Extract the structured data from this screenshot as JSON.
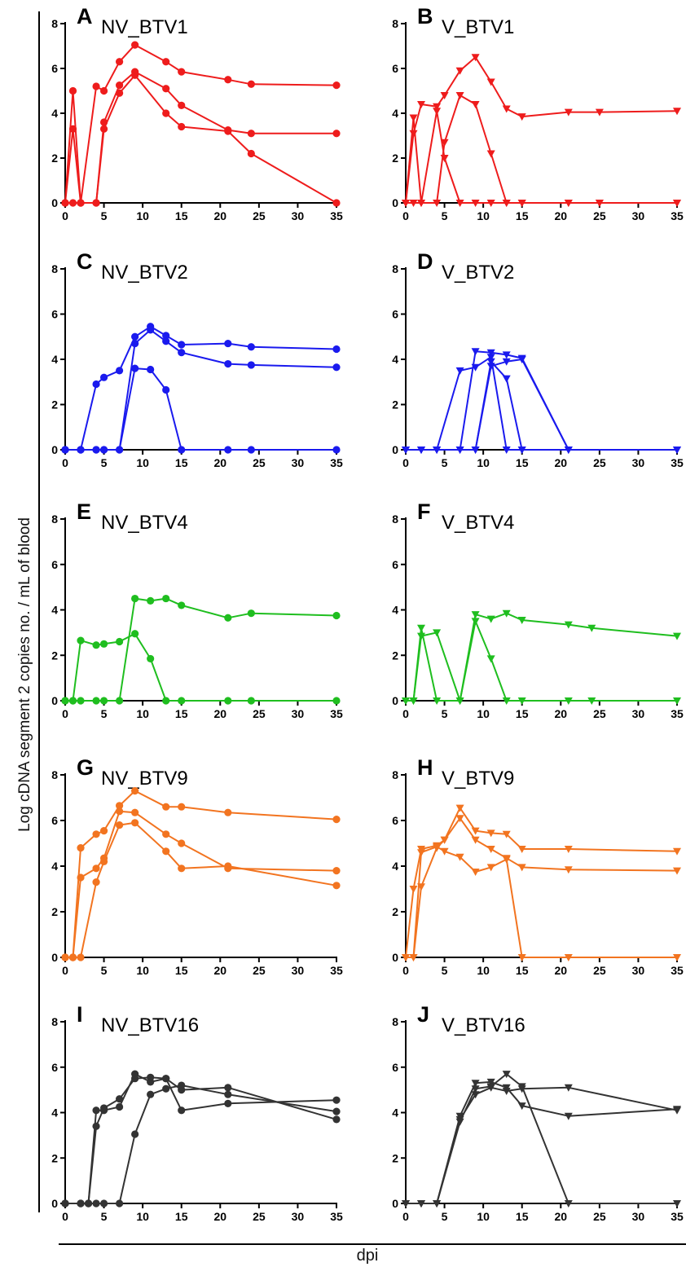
{
  "figure": {
    "ylabel": "Log cDNA segment 2 copies no. / mL of blood",
    "xlabel": "dpi"
  },
  "chart_data": [
    {
      "panel": "A",
      "title": "NV_BTV1",
      "type": "line",
      "color": "#ee1c1c",
      "marker": "circle",
      "xlim": [
        0,
        35
      ],
      "ylim": [
        0,
        8
      ],
      "xticks": [
        0,
        5,
        10,
        15,
        20,
        25,
        30,
        35
      ],
      "yticks": [
        0,
        2,
        4,
        6,
        8
      ],
      "series": [
        {
          "x": [
            0,
            1,
            2,
            4,
            5,
            7,
            9,
            13,
            15,
            21,
            24,
            35
          ],
          "y": [
            0,
            5.0,
            0,
            5.2,
            5.0,
            6.3,
            7.05,
            6.3,
            5.85,
            5.5,
            5.3,
            5.25
          ]
        },
        {
          "x": [
            0,
            1,
            2,
            4,
            5,
            7,
            9,
            13,
            15,
            21,
            24,
            35
          ],
          "y": [
            0,
            3.3,
            0,
            0,
            3.6,
            5.25,
            5.85,
            5.1,
            4.35,
            3.25,
            3.1,
            3.1
          ]
        },
        {
          "x": [
            0,
            1,
            2,
            4,
            5,
            7,
            9,
            13,
            15,
            21,
            24,
            35
          ],
          "y": [
            0,
            0,
            0,
            0,
            3.3,
            4.9,
            5.7,
            4.0,
            3.4,
            3.2,
            2.2,
            0
          ]
        }
      ]
    },
    {
      "panel": "B",
      "title": "V_BTV1",
      "type": "line",
      "color": "#ee1c1c",
      "marker": "triangle-down",
      "xlim": [
        0,
        35
      ],
      "ylim": [
        0,
        8
      ],
      "xticks": [
        0,
        5,
        10,
        15,
        20,
        25,
        30,
        35
      ],
      "yticks": [
        0,
        2,
        4,
        6,
        8
      ],
      "series": [
        {
          "x": [
            0,
            1,
            2,
            4,
            5,
            7,
            9,
            11,
            13,
            15,
            21,
            25,
            35
          ],
          "y": [
            0,
            3.1,
            4.4,
            4.3,
            4.8,
            5.9,
            6.5,
            5.4,
            4.2,
            3.85,
            4.05,
            4.05,
            4.1
          ]
        },
        {
          "x": [
            0,
            1,
            2,
            4,
            5,
            7,
            9,
            11,
            13,
            15,
            21,
            25,
            35
          ],
          "y": [
            0,
            3.8,
            0,
            4.1,
            2.0,
            0,
            0,
            0,
            0,
            0,
            0,
            0,
            0
          ]
        },
        {
          "x": [
            0,
            1,
            2,
            4,
            5,
            7,
            9,
            11,
            13,
            15,
            21,
            25,
            35
          ],
          "y": [
            0,
            0,
            0,
            0,
            2.7,
            4.8,
            4.4,
            2.2,
            0,
            0,
            0,
            0,
            0
          ]
        }
      ]
    },
    {
      "panel": "C",
      "title": "NV_BTV2",
      "type": "line",
      "color": "#1a1aee",
      "marker": "circle",
      "xlim": [
        0,
        35
      ],
      "ylim": [
        0,
        8
      ],
      "xticks": [
        0,
        5,
        10,
        15,
        20,
        25,
        30,
        35
      ],
      "yticks": [
        0,
        2,
        4,
        6,
        8
      ],
      "series": [
        {
          "x": [
            0,
            2,
            4,
            5,
            7,
            9,
            11,
            13,
            15,
            21,
            24,
            35
          ],
          "y": [
            0,
            0,
            2.9,
            3.2,
            3.5,
            5.0,
            5.45,
            5.05,
            4.65,
            4.7,
            4.55,
            4.45
          ]
        },
        {
          "x": [
            0,
            2,
            4,
            5,
            7,
            9,
            11,
            13,
            15,
            21,
            24,
            35
          ],
          "y": [
            0,
            0,
            0,
            0,
            0,
            4.7,
            5.3,
            4.8,
            4.3,
            3.8,
            3.75,
            3.65
          ]
        },
        {
          "x": [
            0,
            2,
            4,
            5,
            7,
            9,
            11,
            13,
            15,
            21,
            24,
            35
          ],
          "y": [
            0,
            0,
            0,
            0,
            0,
            3.6,
            3.55,
            2.65,
            0,
            0,
            0,
            0
          ]
        }
      ]
    },
    {
      "panel": "D",
      "title": "V_BTV2",
      "type": "line",
      "color": "#1a1aee",
      "marker": "triangle-down",
      "xlim": [
        0,
        35
      ],
      "ylim": [
        0,
        8
      ],
      "xticks": [
        0,
        5,
        10,
        15,
        20,
        25,
        30,
        35
      ],
      "yticks": [
        0,
        2,
        4,
        6,
        8
      ],
      "series": [
        {
          "x": [
            0,
            2,
            4,
            7,
            9,
            11,
            13,
            15,
            21,
            35
          ],
          "y": [
            0,
            0,
            0,
            3.5,
            3.65,
            4.1,
            0,
            0,
            0,
            0
          ]
        },
        {
          "x": [
            0,
            2,
            4,
            7,
            9,
            11,
            13,
            15,
            21,
            35
          ],
          "y": [
            0,
            0,
            0,
            0,
            4.35,
            4.3,
            4.2,
            4.05,
            0,
            0
          ]
        },
        {
          "x": [
            0,
            2,
            4,
            7,
            9,
            11,
            13,
            15,
            21,
            35
          ],
          "y": [
            0,
            0,
            0,
            0,
            0,
            3.7,
            3.9,
            4.0,
            0,
            0
          ]
        },
        {
          "x": [
            9,
            11,
            13,
            15
          ],
          "y": [
            0,
            3.9,
            3.15,
            0
          ]
        }
      ]
    },
    {
      "panel": "E",
      "title": "NV_BTV4",
      "type": "line",
      "color": "#1fbe1f",
      "marker": "circle",
      "xlim": [
        0,
        35
      ],
      "ylim": [
        0,
        8
      ],
      "xticks": [
        0,
        5,
        10,
        15,
        20,
        25,
        30,
        35
      ],
      "yticks": [
        0,
        2,
        4,
        6,
        8
      ],
      "series": [
        {
          "x": [
            0,
            1,
            2,
            4,
            5,
            7,
            9,
            11,
            13,
            15,
            21,
            24,
            35
          ],
          "y": [
            0,
            0,
            2.65,
            2.45,
            2.5,
            2.6,
            2.95,
            1.85,
            0,
            0,
            0,
            0,
            0
          ]
        },
        {
          "x": [
            0,
            1,
            2,
            4,
            5,
            7,
            9,
            11,
            13,
            15,
            21,
            24,
            35
          ],
          "y": [
            0,
            0,
            0,
            0,
            0,
            0,
            4.5,
            4.4,
            4.5,
            4.2,
            3.65,
            3.85,
            3.75
          ]
        }
      ]
    },
    {
      "panel": "F",
      "title": "V_BTV4",
      "type": "line",
      "color": "#1fbe1f",
      "marker": "triangle-down",
      "xlim": [
        0,
        35
      ],
      "ylim": [
        0,
        8
      ],
      "xticks": [
        0,
        5,
        10,
        15,
        20,
        25,
        30,
        35
      ],
      "yticks": [
        0,
        2,
        4,
        6,
        8
      ],
      "series": [
        {
          "x": [
            0,
            1,
            2,
            4,
            7,
            9,
            11,
            13,
            15,
            21,
            24,
            35
          ],
          "y": [
            0,
            0,
            3.2,
            0,
            0,
            3.8,
            3.6,
            3.85,
            3.55,
            3.35,
            3.2,
            2.85
          ]
        },
        {
          "x": [
            0,
            1,
            2,
            4,
            7,
            9,
            11,
            13,
            15,
            21,
            24,
            35
          ],
          "y": [
            0,
            0,
            2.85,
            3.0,
            0,
            3.5,
            1.85,
            0,
            0,
            0,
            0,
            0
          ]
        }
      ]
    },
    {
      "panel": "G",
      "title": "NV_BTV9",
      "type": "line",
      "color": "#f27420",
      "marker": "circle",
      "xlim": [
        0,
        35
      ],
      "ylim": [
        0,
        8
      ],
      "xticks": [
        0,
        5,
        10,
        15,
        20,
        25,
        30,
        35
      ],
      "yticks": [
        0,
        2,
        4,
        6,
        8
      ],
      "series": [
        {
          "x": [
            0,
            1,
            2,
            4,
            5,
            7,
            9,
            13,
            15,
            21,
            35
          ],
          "y": [
            0,
            0,
            4.8,
            5.4,
            5.55,
            6.65,
            7.3,
            6.6,
            6.6,
            6.35,
            6.05
          ]
        },
        {
          "x": [
            0,
            1,
            2,
            4,
            5,
            7,
            9,
            13,
            15,
            21,
            35
          ],
          "y": [
            0,
            0,
            3.5,
            3.9,
            4.35,
            6.4,
            6.35,
            5.4,
            5.0,
            3.9,
            3.8
          ]
        },
        {
          "x": [
            0,
            1,
            2,
            4,
            5,
            7,
            9,
            13,
            15,
            21,
            35
          ],
          "y": [
            0,
            0,
            0,
            3.3,
            4.2,
            5.8,
            5.9,
            4.65,
            3.9,
            4.0,
            3.15
          ]
        }
      ]
    },
    {
      "panel": "H",
      "title": "V_BTV9",
      "type": "line",
      "color": "#f27420",
      "marker": "triangle-down",
      "xlim": [
        0,
        35
      ],
      "ylim": [
        0,
        8
      ],
      "xticks": [
        0,
        5,
        10,
        15,
        20,
        25,
        30,
        35
      ],
      "yticks": [
        0,
        2,
        4,
        6,
        8
      ],
      "series": [
        {
          "x": [
            0,
            1,
            2,
            4,
            5,
            7,
            9,
            11,
            13,
            15,
            21,
            35
          ],
          "y": [
            0,
            3.0,
            4.75,
            4.9,
            5.15,
            6.55,
            5.55,
            5.45,
            5.4,
            4.75,
            4.75,
            4.65
          ]
        },
        {
          "x": [
            0,
            1,
            2,
            4,
            5,
            7,
            9,
            11,
            13,
            15,
            21,
            35
          ],
          "y": [
            0,
            0,
            3.1,
            4.8,
            5.15,
            6.1,
            5.15,
            4.75,
            4.35,
            3.95,
            3.85,
            3.8
          ]
        },
        {
          "x": [
            0,
            1,
            2,
            4,
            5,
            7,
            9,
            11,
            13,
            15,
            21,
            35
          ],
          "y": [
            0,
            0,
            4.6,
            4.85,
            4.65,
            4.4,
            3.75,
            3.95,
            4.3,
            0,
            0,
            0
          ]
        }
      ]
    },
    {
      "panel": "I",
      "title": "NV_BTV16",
      "type": "line",
      "color": "#333333",
      "marker": "circle",
      "xlim": [
        0,
        35
      ],
      "ylim": [
        0,
        8
      ],
      "xticks": [
        0,
        5,
        10,
        15,
        20,
        25,
        30,
        35
      ],
      "yticks": [
        0,
        2,
        4,
        6,
        8
      ],
      "series": [
        {
          "x": [
            0,
            2,
            3,
            4,
            5,
            7,
            9,
            11,
            13,
            15,
            21,
            35
          ],
          "y": [
            0,
            0,
            0,
            4.1,
            4.1,
            4.25,
            5.7,
            5.35,
            5.5,
            4.1,
            4.4,
            4.55
          ]
        },
        {
          "x": [
            0,
            2,
            3,
            4,
            5,
            7,
            9,
            11,
            13,
            15,
            21,
            35
          ],
          "y": [
            0,
            0,
            0,
            3.4,
            4.2,
            4.6,
            5.5,
            5.55,
            5.5,
            5.0,
            5.1,
            3.7
          ]
        },
        {
          "x": [
            0,
            2,
            3,
            4,
            5,
            7,
            9,
            11,
            13,
            15,
            21,
            35
          ],
          "y": [
            0,
            0,
            0,
            0,
            0,
            0,
            3.05,
            4.8,
            5.05,
            5.2,
            4.8,
            4.05
          ]
        }
      ]
    },
    {
      "panel": "J",
      "title": "V_BTV16",
      "type": "line",
      "color": "#333333",
      "marker": "triangle-down",
      "xlim": [
        0,
        35
      ],
      "ylim": [
        0,
        8
      ],
      "xticks": [
        0,
        5,
        10,
        15,
        20,
        25,
        30,
        35
      ],
      "yticks": [
        0,
        2,
        4,
        6,
        8
      ],
      "series": [
        {
          "x": [
            0,
            2,
            4,
            7,
            9,
            11,
            13,
            15,
            21,
            35
          ],
          "y": [
            0,
            0,
            0,
            3.85,
            5.3,
            5.35,
            5.1,
            4.3,
            3.85,
            4.15
          ]
        },
        {
          "x": [
            0,
            2,
            4,
            7,
            9,
            11,
            13,
            15,
            21,
            35
          ],
          "y": [
            0,
            0,
            0,
            3.7,
            4.8,
            5.1,
            4.95,
            5.05,
            5.1,
            4.1
          ]
        },
        {
          "x": [
            0,
            2,
            4,
            7,
            9,
            11,
            13,
            15,
            21,
            35
          ],
          "y": [
            0,
            0,
            0,
            3.6,
            5.05,
            5.15,
            5.7,
            5.15,
            0,
            0
          ]
        }
      ]
    }
  ]
}
